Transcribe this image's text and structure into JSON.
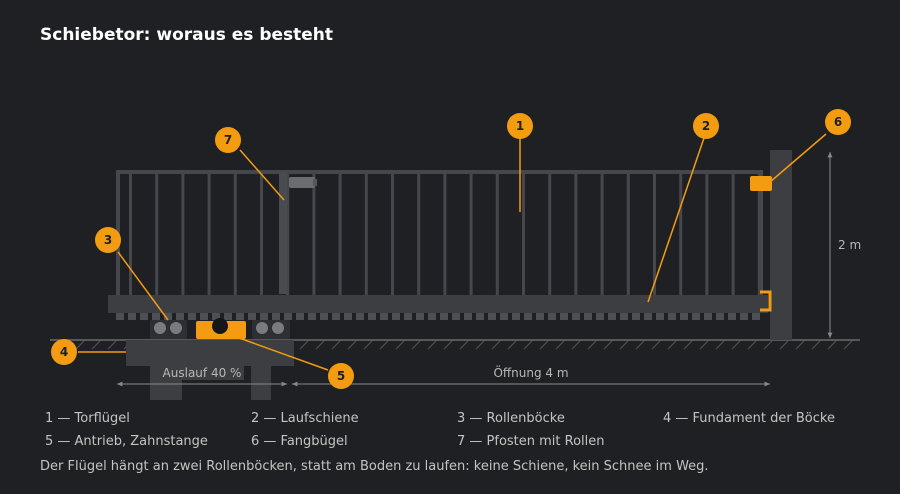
{
  "title": "Schiebetor: woraus es besteht",
  "colors": {
    "accent": "#f39c12",
    "background": "#1f2023",
    "structure": "#3d3e42"
  },
  "callouts": [
    {
      "id": "1",
      "label": "Torflügel"
    },
    {
      "id": "2",
      "label": "Laufschiene"
    },
    {
      "id": "3",
      "label": "Rollenböcke"
    },
    {
      "id": "4",
      "label": "Fundament der Böcke"
    },
    {
      "id": "5",
      "label": "Antrieb, Zahnstange"
    },
    {
      "id": "6",
      "label": "Fangbügel"
    },
    {
      "id": "7",
      "label": "Pfosten mit Rollen"
    }
  ],
  "legend": [
    "1 — Torflügel",
    "2 — Laufschiene",
    "3 — Rollenböcke",
    "4 — Fundament der Böcke",
    "5 — Antrieb, Zahnstange",
    "6 — Fangbügel",
    "7 — Pfosten mit Rollen"
  ],
  "dimensions": {
    "height": "2 m",
    "runout": "Auslauf 40 %",
    "opening": "Öffnung 4 m"
  },
  "caption": "Der Flügel hängt an zwei Rollenböcken, statt am Boden zu laufen: keine Schiene, kein Schnee im Weg."
}
